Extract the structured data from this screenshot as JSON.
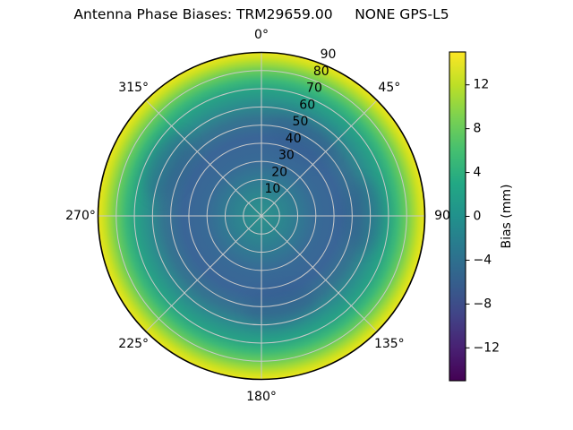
{
  "title": "Antenna Phase Biases: TRM29659.00     NONE GPS-L5",
  "chart_data": {
    "type": "heatmap",
    "projection": "polar",
    "title": "Antenna Phase Biases: TRM29659.00     NONE GPS-L5",
    "antenna": "TRM29659.00",
    "radome": "NONE",
    "signal": "GPS-L5",
    "theta_angles_deg": [
      0,
      45,
      90,
      135,
      180,
      225,
      270,
      315
    ],
    "theta_tick_labels": [
      "0°",
      "45°",
      "90",
      "135°",
      "180°",
      "225°",
      "270°",
      "315°"
    ],
    "r_tick_values": [
      10,
      20,
      30,
      40,
      50,
      60,
      70,
      80,
      90
    ],
    "r_max": 90,
    "r_label_angle_deg": 22.5,
    "grid": true,
    "colormap": "viridis",
    "colorbar": {
      "label": "Bias (mm)",
      "tick_values": [
        12,
        8,
        4,
        0,
        -4,
        -8,
        -12
      ],
      "tick_labels": [
        "12",
        "8",
        "4",
        "0",
        "−4",
        "−8",
        "−12"
      ],
      "vmin": -15,
      "vmax": 15,
      "level_step_mm": 1,
      "position": "right"
    },
    "colorbar_gradient_stops": [
      {
        "pos": 0.0,
        "color": "#fde725"
      },
      {
        "pos": 0.1,
        "color": "#bddf26"
      },
      {
        "pos": 0.2,
        "color": "#7ad151"
      },
      {
        "pos": 0.3,
        "color": "#44bf70"
      },
      {
        "pos": 0.4,
        "color": "#22a884"
      },
      {
        "pos": 0.5,
        "color": "#21918c"
      },
      {
        "pos": 0.6,
        "color": "#2a788e"
      },
      {
        "pos": 0.7,
        "color": "#355f8d"
      },
      {
        "pos": 0.8,
        "color": "#414487"
      },
      {
        "pos": 0.9,
        "color": "#482173"
      },
      {
        "pos": 1.0,
        "color": "#440154"
      }
    ],
    "surface_radial_stops": [
      {
        "pos": 0.0,
        "color": "#2e918d"
      },
      {
        "pos": 0.1,
        "color": "#2c898e"
      },
      {
        "pos": 0.22,
        "color": "#307a92"
      },
      {
        "pos": 0.34,
        "color": "#386a96"
      },
      {
        "pos": 0.48,
        "color": "#3a6597"
      },
      {
        "pos": 0.6,
        "color": "#347590"
      },
      {
        "pos": 0.69,
        "color": "#2b8e8d"
      },
      {
        "pos": 0.77,
        "color": "#27a285"
      },
      {
        "pos": 0.83,
        "color": "#3cb878"
      },
      {
        "pos": 0.88,
        "color": "#62c95e"
      },
      {
        "pos": 0.925,
        "color": "#99d83d"
      },
      {
        "pos": 0.962,
        "color": "#c8e022"
      },
      {
        "pos": 1.0,
        "color": "#ece51b"
      }
    ],
    "radial_profile": {
      "description": "azimuthally averaged bias vs zenith angle, read from colors",
      "zenith_deg": [
        0,
        10,
        20,
        30,
        40,
        50,
        60,
        70,
        75,
        80,
        85,
        88,
        90
      ],
      "bias_mm": [
        0.5,
        -0.5,
        -2,
        -3.5,
        -4,
        -3.5,
        -2,
        0.5,
        2.5,
        5,
        8.5,
        11.5,
        13.5
      ]
    },
    "local_minima_patches": [
      {
        "azimuth_deg": 28,
        "zenith_deg": 48,
        "bias_mm": -5
      },
      {
        "azimuth_deg": 90,
        "zenith_deg": 56,
        "bias_mm": -5
      },
      {
        "azimuth_deg": 168,
        "zenith_deg": 50,
        "bias_mm": -5
      },
      {
        "azimuth_deg": 298,
        "zenith_deg": 58,
        "bias_mm": -5
      }
    ]
  },
  "colors": {
    "background": "#ffffff",
    "grid": "#c9c9c9",
    "outline": "#000000",
    "text": "#000000",
    "patch": "#31588e"
  }
}
